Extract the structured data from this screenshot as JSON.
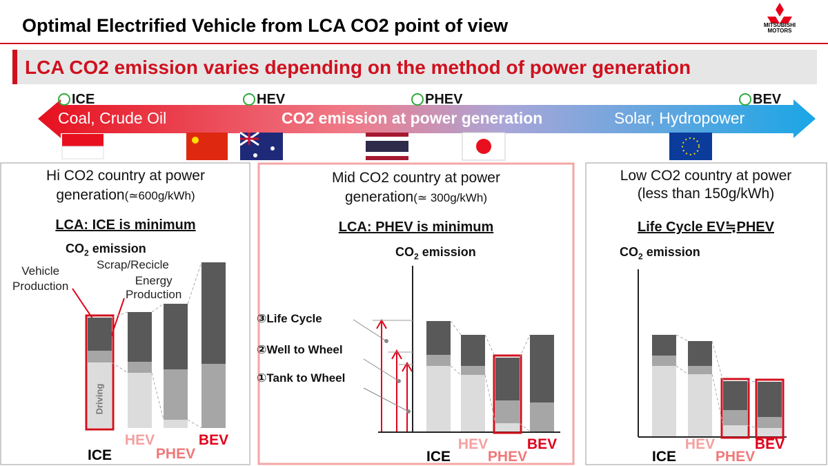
{
  "header": {
    "title": "Optimal Electrified Vehicle from LCA CO2 point of view",
    "logo": [
      "MITSUBISHI",
      "MOTORS"
    ]
  },
  "subtitle": "LCA CO2 emission varies depending on the method of power generation",
  "scale": {
    "left": "Coal, Crude Oil",
    "center": "CO2 emission at power generation",
    "right": "Solar, Hydropower",
    "markers": [
      "ICE",
      "HEV",
      "PHEV",
      "BEV"
    ]
  },
  "panels": [
    {
      "heading": [
        [
          "Hi CO2 country at power"
        ],
        [
          "generation",
          "(≃600g/kWh)"
        ]
      ],
      "verdict": "LCA: ICE is minimum",
      "axis_label": {
        "main": "CO",
        "sub": "2",
        "rest": "emission"
      },
      "notes": [
        [
          "Vehicle",
          "Production"
        ],
        [
          "Scrap/Recicle"
        ],
        [
          "Energy",
          "Production"
        ],
        [
          "Driving"
        ]
      ],
      "bars": [
        {
          "label": "ICE",
          "color": "#000000",
          "segments": [
            95,
            17,
            48
          ],
          "highlight": true
        },
        {
          "label": "HEV",
          "color": "#f4a0a0",
          "segments": [
            80,
            16,
            72
          ],
          "highlight": false
        },
        {
          "label": "PHEV",
          "color": "#f07878",
          "segments": [
            12,
            73,
            95
          ],
          "highlight": false
        },
        {
          "label": "BEV",
          "color": "#e0001a",
          "segments": [
            0,
            93,
            147
          ],
          "highlight": false
        }
      ]
    },
    {
      "heading": [
        [
          "Mid CO2 country at power"
        ],
        [
          "generation",
          "(≃ 300g/kWh)"
        ]
      ],
      "verdict": "LCA: PHEV is minimum",
      "axis_label": {
        "main": "CO",
        "sub": "2",
        "rest": "emission"
      },
      "notes": [
        [
          "③Life Cycle"
        ],
        [
          "②Well to Wheel"
        ],
        [
          "①Tank to Wheel"
        ]
      ],
      "bars": [
        {
          "label": "ICE",
          "color": "#000000",
          "segments": [
            95,
            16,
            49
          ],
          "highlight": false
        },
        {
          "label": "HEV",
          "color": "#f4a0a0",
          "segments": [
            82,
            13,
            45
          ],
          "highlight": false
        },
        {
          "label": "PHEV",
          "color": "#f07878",
          "segments": [
            12,
            33,
            62
          ],
          "highlight": true
        },
        {
          "label": "BEV",
          "color": "#e0001a",
          "segments": [
            0,
            42,
            98
          ],
          "highlight": false
        }
      ]
    },
    {
      "heading": [
        [
          "Low CO2 country at power"
        ],
        [
          "(less than 150g/kWh)"
        ]
      ],
      "verdict": "Life Cycle EV≒PHEV",
      "axis_label": {
        "main": "CO",
        "sub": "2",
        "rest": "emission"
      },
      "notes": [],
      "bars": [
        {
          "label": "ICE",
          "color": "#000000",
          "segments": [
            102,
            15,
            30
          ],
          "highlight": false
        },
        {
          "label": "HEV",
          "color": "#f4a0a0",
          "segments": [
            90,
            12,
            36
          ],
          "highlight": false
        },
        {
          "label": "PHEV",
          "color": "#f07878",
          "segments": [
            16,
            22,
            42
          ],
          "highlight": true
        },
        {
          "label": "BEV",
          "color": "#e0001a",
          "segments": [
            12,
            16,
            51
          ],
          "highlight": true
        }
      ]
    }
  ]
}
